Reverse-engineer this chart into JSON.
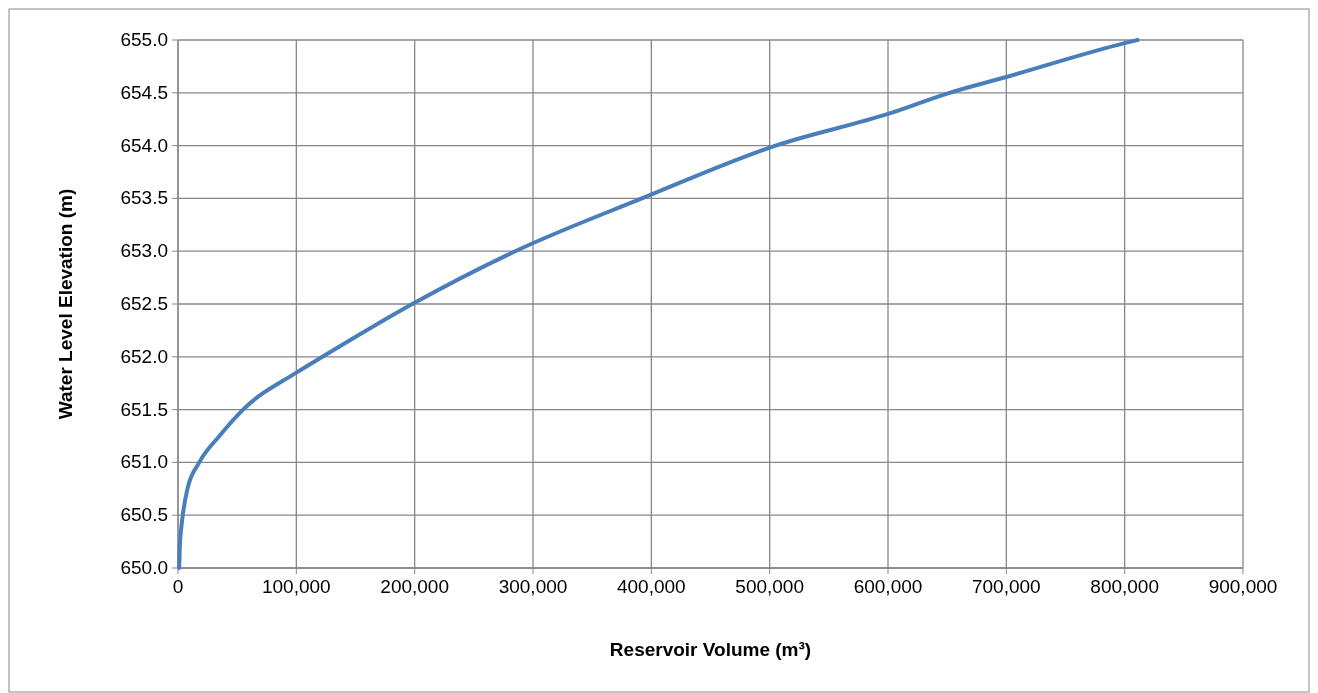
{
  "chart_data": {
    "type": "line",
    "xlabel": "Reservoir Volume  (m³)",
    "ylabel": "Water Level Elevation  (m)",
    "series": [
      {
        "color": "#4a7ebb",
        "x": [
          1000,
          1500,
          2500,
          4000,
          8000,
          18000,
          35000,
          55000,
          100000,
          122000,
          198000,
          285000,
          392000,
          505000,
          600000,
          652000,
          700000,
          800000,
          811000
        ],
        "values": [
          650.0,
          650.2,
          650.35,
          650.5,
          650.75,
          651.0,
          651.25,
          651.5,
          651.85,
          652.0,
          652.5,
          653.0,
          653.5,
          654.0,
          654.3,
          654.5,
          654.65,
          654.97,
          655.0
        ]
      }
    ],
    "xlim": [
      0,
      900000
    ],
    "xticks": [
      {
        "value": 0,
        "label": "0"
      },
      {
        "value": 100000,
        "label": "100,000"
      },
      {
        "value": 200000,
        "label": "200,000"
      },
      {
        "value": 300000,
        "label": "300,000"
      },
      {
        "value": 400000,
        "label": "400,000"
      },
      {
        "value": 500000,
        "label": "500,000"
      },
      {
        "value": 600000,
        "label": "600,000"
      },
      {
        "value": 700000,
        "label": "700,000"
      },
      {
        "value": 800000,
        "label": "800,000"
      },
      {
        "value": 900000,
        "label": "900,000"
      }
    ],
    "ylim": [
      650,
      655
    ],
    "yticks": [
      {
        "value": 650,
        "label": "650.0"
      },
      {
        "value": 650.5,
        "label": "650.5"
      },
      {
        "value": 651,
        "label": "651.0"
      },
      {
        "value": 651.5,
        "label": "651.5"
      },
      {
        "value": 652,
        "label": "652.0"
      },
      {
        "value": 652.5,
        "label": "652.5"
      },
      {
        "value": 653,
        "label": "653.0"
      },
      {
        "value": 653.5,
        "label": "653.5"
      },
      {
        "value": 654,
        "label": "654.0"
      },
      {
        "value": 654.5,
        "label": "654.5"
      },
      {
        "value": 655,
        "label": "655.0"
      }
    ],
    "grid": true,
    "marker": "none",
    "line_style": "solid"
  }
}
